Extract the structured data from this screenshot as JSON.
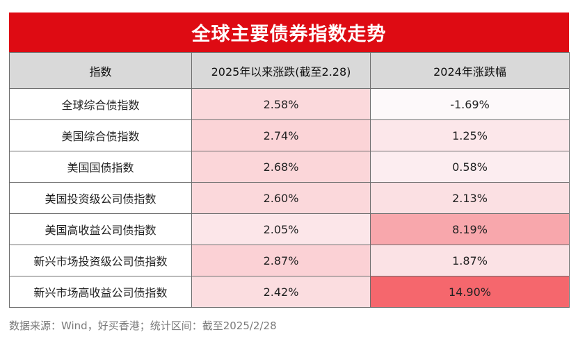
{
  "title": "全球主要债券指数走势",
  "table": {
    "headers": [
      "指数",
      "2025年以来涨跌(截至2.28)",
      "2024年涨跌幅"
    ],
    "rows": [
      {
        "name": "全球综合债指数",
        "ytd": "2.58%",
        "y2024": "-1.69%",
        "ytd_color": "#fbd9dc",
        "y2024_color": "#fdf9fa"
      },
      {
        "name": "美国综合债指数",
        "ytd": "2.74%",
        "y2024": "1.25%",
        "ytd_color": "#fbd4d7",
        "y2024_color": "#fce7ea"
      },
      {
        "name": "美国国债指数",
        "ytd": "2.68%",
        "y2024": "0.58%",
        "ytd_color": "#fbd6d9",
        "y2024_color": "#fcedf0"
      },
      {
        "name": "美国投资级公司债指数",
        "ytd": "2.60%",
        "y2024": "2.13%",
        "ytd_color": "#fbd8db",
        "y2024_color": "#fbe0e3"
      },
      {
        "name": "美国高收益公司债指数",
        "ytd": "2.05%",
        "y2024": "8.19%",
        "ytd_color": "#fce6e9",
        "y2024_color": "#f8a7ac"
      },
      {
        "name": "新兴市场投资级公司债指数",
        "ytd": "2.87%",
        "y2024": "1.87%",
        "ytd_color": "#fbd1d5",
        "y2024_color": "#fbe2e5"
      },
      {
        "name": "新兴市场高收益公司债指数",
        "ytd": "2.42%",
        "y2024": "14.90%",
        "ytd_color": "#fbdde0",
        "y2024_color": "#f5676d"
      }
    ]
  },
  "source": "数据来源：Wind，好买香港；统计区间：截至2025/2/28"
}
